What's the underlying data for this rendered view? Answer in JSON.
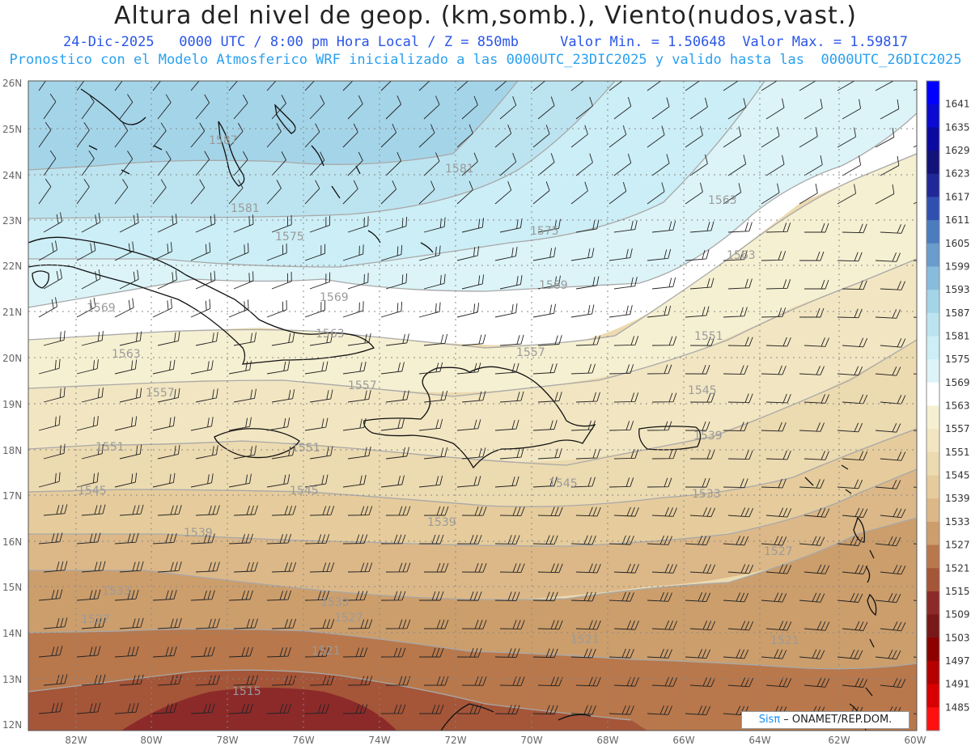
{
  "header": {
    "title": "Altura del nivel de geop. (km,somb.), Viento(nudos,vast.)",
    "date": "24-Dic-2025",
    "time_info": "0000 UTC / 8:00 pm Hora Local / Z = 850mb",
    "min_value": "Valor Min. = 1.50648",
    "max_value": "Valor Max. = 1.59817",
    "model_info": "Pronostico con el Modelo Atmosferico WRF inicializado a las 0000UTC_23DIC2025 y valido hasta las  0000UTC_26DIC2025"
  },
  "map": {
    "lon_labels": [
      "82W",
      "80W",
      "78W",
      "76W",
      "74W",
      "72W",
      "70W",
      "68W",
      "66W",
      "64W",
      "62W",
      "60W"
    ],
    "lat_labels": [
      "26N",
      "25N",
      "24N",
      "23N",
      "22N",
      "21N",
      "20N",
      "19N",
      "18N",
      "17N",
      "16N",
      "15N",
      "14N",
      "13N",
      "12N"
    ],
    "contour_labels": [
      "1587",
      "1581",
      "1581",
      "1575",
      "1575",
      "1569",
      "1569",
      "1569",
      "1563",
      "1563",
      "1563",
      "1563",
      "1557",
      "1557",
      "1557",
      "1551",
      "1551",
      "1551",
      "1545",
      "1545",
      "1545",
      "1545",
      "1539",
      "1539",
      "1539",
      "1533",
      "1533",
      "1533",
      "1527",
      "1527",
      "1527",
      "1521",
      "1521",
      "1521",
      "1515"
    ]
  },
  "colorbar": {
    "labels": [
      "1641",
      "1635",
      "1629",
      "1623",
      "1617",
      "1611",
      "1605",
      "1599",
      "1593",
      "1587",
      "1581",
      "1575",
      "1569",
      "1563",
      "1557",
      "1551",
      "1545",
      "1539",
      "1533",
      "1527",
      "1521",
      "1515",
      "1509",
      "1503",
      "1497",
      "1491",
      "1485"
    ],
    "colors": [
      "#0000ff",
      "#0a0ad0",
      "#0a0aa0",
      "#12127a",
      "#202898",
      "#3050b0",
      "#4c7cc0",
      "#6a9ccc",
      "#88bcdc",
      "#a4d4e8",
      "#bce4f0",
      "#cceef6",
      "#dcf4f8",
      "#ffffff",
      "#f6f0d2",
      "#f2e6c2",
      "#ecdab0",
      "#e6cc9c",
      "#dcb888",
      "#cc9e6c",
      "#b8784c",
      "#a55538",
      "#8c2a2a",
      "#781818",
      "#8c0000",
      "#b40000",
      "#d80000",
      "#ff1010"
    ]
  },
  "credit": {
    "sis": "Sisπ",
    "rest": " – ONAMET/REP.DOM."
  }
}
